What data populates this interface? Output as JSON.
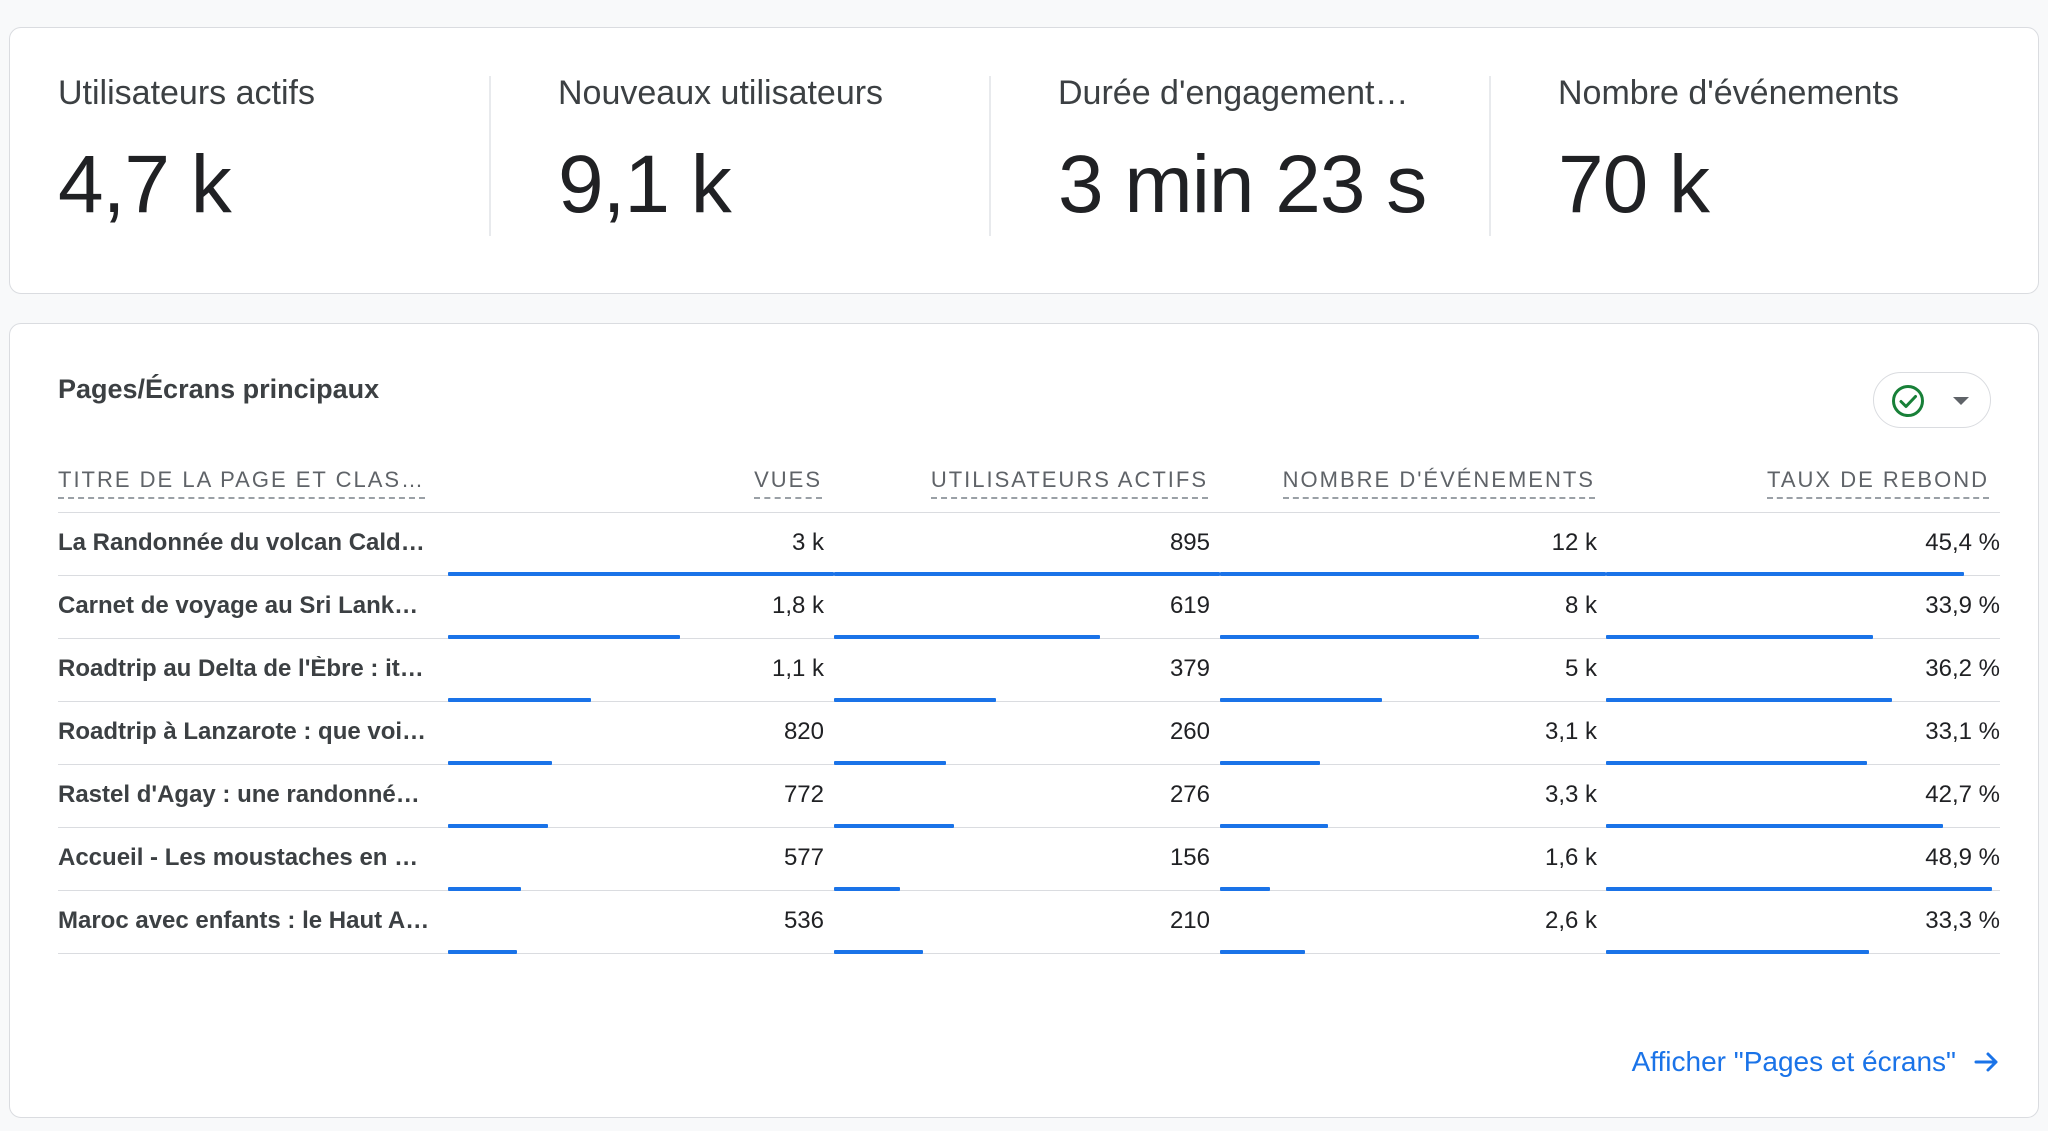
{
  "kpis": [
    {
      "label": "Utilisateurs actifs",
      "value": "4,7 k"
    },
    {
      "label": "Nouveaux utilisateurs",
      "value": "9,1 k"
    },
    {
      "label": "Durée d'engagement…",
      "value": "3 min 23 s"
    },
    {
      "label": "Nombre d'événements",
      "value": "70 k"
    }
  ],
  "top_pages": {
    "title": "Pages/Écrans principaux",
    "status_icon": "check-circle-icon",
    "columns": {
      "page_title": "TITRE DE LA PAGE ET CLAS…",
      "views": "VUES",
      "active_users": "UTILISATEURS ACTIFS",
      "event_count": "NOMBRE D'ÉVÉNEMENTS",
      "bounce_rate": "TAUX DE REBOND"
    },
    "rows": [
      {
        "title": "La Randonnée du volcan Cald…",
        "views": "3 k",
        "users": "895",
        "events": "12 k",
        "bounce": "45,4 %",
        "views_frac": 1.0,
        "users_frac": 1.0,
        "events_frac": 1.0,
        "bounce_frac": 0.928
      },
      {
        "title": "Carnet de voyage au Sri Lanka…",
        "views": "1,8 k",
        "users": "619",
        "events": "8 k",
        "bounce": "33,9 %",
        "views_frac": 0.6,
        "users_frac": 0.69,
        "events_frac": 0.67,
        "bounce_frac": 0.693
      },
      {
        "title": "Roadtrip au Delta de l'Èbre : iti…",
        "views": "1,1 k",
        "users": "379",
        "events": "5 k",
        "bounce": "36,2 %",
        "views_frac": 0.37,
        "users_frac": 0.42,
        "events_frac": 0.42,
        "bounce_frac": 0.74
      },
      {
        "title": "Roadtrip à Lanzarote : que voir…",
        "views": "820",
        "users": "260",
        "events": "3,1 k",
        "bounce": "33,1 %",
        "views_frac": 0.27,
        "users_frac": 0.29,
        "events_frac": 0.26,
        "bounce_frac": 0.677
      },
      {
        "title": "Rastel d'Agay : une randonnée …",
        "views": "772",
        "users": "276",
        "events": "3,3 k",
        "bounce": "42,7 %",
        "views_frac": 0.26,
        "users_frac": 0.31,
        "events_frac": 0.28,
        "bounce_frac": 0.873
      },
      {
        "title": "Accueil - Les moustaches en v…",
        "views": "577",
        "users": "156",
        "events": "1,6 k",
        "bounce": "48,9 %",
        "views_frac": 0.19,
        "users_frac": 0.17,
        "events_frac": 0.13,
        "bounce_frac": 1.0
      },
      {
        "title": "Maroc avec enfants : le Haut A…",
        "views": "536",
        "users": "210",
        "events": "2,6 k",
        "bounce": "33,3 %",
        "views_frac": 0.18,
        "users_frac": 0.23,
        "events_frac": 0.22,
        "bounce_frac": 0.681
      }
    ],
    "footer_link": "Afficher \"Pages et écrans\"",
    "accent_color": "#1a73e8"
  }
}
